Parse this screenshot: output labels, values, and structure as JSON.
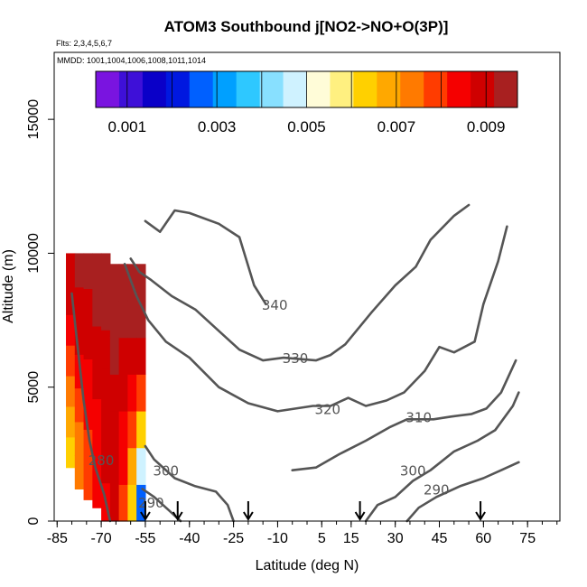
{
  "chart_data": {
    "type": "heatmap",
    "title": "ATOM3 Southbound j[NO2->NO+O(3P)]",
    "flights_note": "Flts: 2,3,4,5,6,7",
    "date_note": "MMDD: 1001,1004,1006,1008,1011,1014",
    "xlabel": "Latitude (deg N)",
    "ylabel": "Altitude (m)",
    "xlim": [
      -86,
      86
    ],
    "ylim": [
      0,
      17500
    ],
    "x_ticks": [
      -85,
      -70,
      -55,
      -40,
      -25,
      -10,
      5,
      15,
      30,
      45,
      60,
      75
    ],
    "x_tick_labels": [
      "-85",
      "-70",
      "-55",
      "-40",
      "-25",
      "-10",
      "5",
      "15",
      "30",
      "45",
      "60",
      "75"
    ],
    "y_ticks": [
      0,
      5000,
      10000,
      15000
    ],
    "y_tick_labels": [
      "0",
      "5000",
      "10000",
      "15000"
    ],
    "colorbar": {
      "range": [
        0.0003,
        0.0097
      ],
      "ticks": [
        0.001,
        0.003,
        0.005,
        0.007,
        0.009
      ],
      "tick_labels": [
        "0.001",
        "0.003",
        "0.005",
        "0.007",
        "0.009"
      ],
      "colors": [
        "#7a14e0",
        "#3e10d8",
        "#0a00c8",
        "#0018e0",
        "#0060ff",
        "#00a0ff",
        "#2ec8ff",
        "#88e0ff",
        "#cff2ff",
        "#fffcd8",
        "#fff080",
        "#ffd000",
        "#ffa800",
        "#ff7a00",
        "#ff3c00",
        "#f50000",
        "#cf0000",
        "#a82020"
      ]
    },
    "heatmap_columns": [
      {
        "lat": -80.5,
        "top": 10000,
        "bottom": 2000,
        "values": [
          0.0062,
          0.0066,
          0.0071,
          0.0077,
          0.0082,
          0.0087,
          0.009
        ]
      },
      {
        "lat": -77.5,
        "top": 10000,
        "bottom": 1200,
        "values": [
          0.0071,
          0.0075,
          0.0079,
          0.0084,
          0.0088,
          0.0091,
          0.0092
        ]
      },
      {
        "lat": -74.5,
        "top": 10000,
        "bottom": 800,
        "values": [
          0.0077,
          0.008,
          0.0083,
          0.0086,
          0.0089,
          0.0091,
          0.0093
        ]
      },
      {
        "lat": -71.5,
        "top": 10000,
        "bottom": 500,
        "values": [
          0.0082,
          0.0084,
          0.0086,
          0.0088,
          0.009,
          0.0092,
          0.0094
        ]
      },
      {
        "lat": -68.5,
        "top": 10000,
        "bottom": 0,
        "values": [
          0.0086,
          0.0087,
          0.0088,
          0.009,
          0.0091,
          0.0093,
          0.0095
        ]
      },
      {
        "lat": -65.5,
        "top": 9600,
        "bottom": 0,
        "values": [
          0.0087,
          0.0088,
          0.0089,
          0.009,
          0.0092,
          0.0093,
          0.0095
        ]
      },
      {
        "lat": -62.5,
        "top": 9600,
        "bottom": 0,
        "values": [
          0.0079,
          0.0083,
          0.0086,
          0.0089,
          0.0091,
          0.0093,
          0.0095
        ]
      },
      {
        "lat": -59.5,
        "top": 9600,
        "bottom": 0,
        "values": [
          0.0061,
          0.007,
          0.0078,
          0.0085,
          0.009,
          0.0093,
          0.0095
        ]
      },
      {
        "lat": -56.5,
        "top": 9600,
        "bottom": 0,
        "values": [
          0.0028,
          0.0046,
          0.0065,
          0.0081,
          0.0089,
          0.0093,
          0.0095
        ]
      }
    ],
    "contours": [
      {
        "label": "340",
        "label_at": [
          -11,
          8100
        ],
        "points": [
          [
            -55,
            11200
          ],
          [
            -50,
            10800
          ],
          [
            -45,
            11600
          ],
          [
            -40,
            11500
          ],
          [
            -30,
            11100
          ],
          [
            -23,
            10600
          ],
          [
            -18,
            8800
          ],
          [
            -14,
            8100
          ]
        ]
      },
      {
        "label": "330",
        "label_at": [
          -4,
          6100
        ],
        "points": [
          [
            -60,
            9800
          ],
          [
            -57,
            9300
          ],
          [
            -53,
            9000
          ],
          [
            -46,
            8400
          ],
          [
            -38,
            7900
          ],
          [
            -30,
            7100
          ],
          [
            -23,
            6400
          ],
          [
            -15,
            6000
          ],
          [
            -8,
            6100
          ],
          [
            3,
            6000
          ],
          [
            8,
            6200
          ],
          [
            13,
            6600
          ],
          [
            22,
            7800
          ],
          [
            30,
            8800
          ],
          [
            37,
            9500
          ],
          [
            42,
            10500
          ],
          [
            50,
            11400
          ],
          [
            55,
            11800
          ]
        ]
      },
      {
        "label": "320",
        "label_at": [
          7,
          4200
        ],
        "points": [
          [
            -62,
            9600
          ],
          [
            -58,
            8400
          ],
          [
            -54,
            7500
          ],
          [
            -48,
            6700
          ],
          [
            -40,
            6100
          ],
          [
            -30,
            5000
          ],
          [
            -20,
            4400
          ],
          [
            -10,
            4100
          ],
          [
            2,
            4300
          ],
          [
            8,
            4300
          ],
          [
            14,
            4600
          ],
          [
            20,
            4300
          ],
          [
            27,
            4500
          ],
          [
            33,
            4800
          ],
          [
            40,
            5600
          ],
          [
            45,
            6500
          ],
          [
            50,
            6300
          ],
          [
            57,
            6700
          ],
          [
            60,
            8100
          ],
          [
            65,
            9700
          ],
          [
            68,
            11000
          ]
        ]
      },
      {
        "label": "310",
        "label_at": [
          38,
          3900
        ],
        "points": [
          [
            -5,
            1900
          ],
          [
            3,
            2000
          ],
          [
            11,
            2500
          ],
          [
            20,
            3000
          ],
          [
            28,
            3500
          ],
          [
            34,
            3800
          ],
          [
            43,
            3800
          ],
          [
            49,
            3900
          ],
          [
            56,
            4000
          ],
          [
            61,
            4200
          ],
          [
            66,
            4800
          ],
          [
            71,
            6000
          ]
        ]
      },
      {
        "label": "300",
        "label_at": [
          -48,
          1900
        ],
        "points": [
          [
            -55,
            2800
          ],
          [
            -52,
            2300
          ],
          [
            -45,
            1600
          ],
          [
            -38,
            1300
          ],
          [
            -31,
            1100
          ],
          [
            -27,
            600
          ],
          [
            -25,
            0
          ]
        ]
      },
      {
        "label": "300",
        "label_at": [
          36,
          1900
        ],
        "points": [
          [
            20,
            0
          ],
          [
            24,
            600
          ],
          [
            30,
            900
          ],
          [
            36,
            1500
          ],
          [
            42,
            1900
          ],
          [
            50,
            2600
          ],
          [
            58,
            3000
          ],
          [
            64,
            3400
          ],
          [
            70,
            4300
          ],
          [
            72,
            4800
          ]
        ]
      },
      {
        "label": "290",
        "label_at": [
          -53,
          700
        ],
        "points": [
          [
            -56,
            1200
          ],
          [
            -52,
            900
          ],
          [
            -47,
            400
          ],
          [
            -43,
            0
          ]
        ]
      },
      {
        "label": "290",
        "label_at": [
          44,
          1200
        ],
        "points": [
          [
            34,
            0
          ],
          [
            38,
            500
          ],
          [
            44,
            900
          ],
          [
            52,
            1300
          ],
          [
            60,
            1600
          ],
          [
            66,
            1900
          ],
          [
            72,
            2200
          ]
        ]
      },
      {
        "label": "280",
        "label_at": [
          -70,
          2300
        ],
        "points": [
          [
            -80,
            8500
          ],
          [
            -78,
            6500
          ],
          [
            -76,
            4500
          ],
          [
            -74,
            3000
          ],
          [
            -72,
            2000
          ],
          [
            -69,
            1000
          ],
          [
            -67,
            0
          ]
        ]
      }
    ],
    "flight_arrows_lat": [
      -55,
      -44,
      -20,
      18,
      59
    ]
  }
}
